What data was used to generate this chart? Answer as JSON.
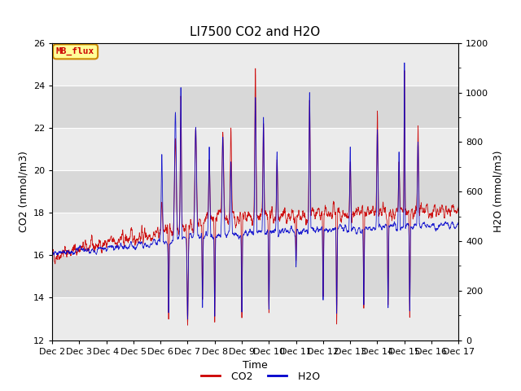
{
  "title": "LI7500 CO2 and H2O",
  "xlabel": "Time",
  "ylabel_left": "CO2 (mmol/m3)",
  "ylabel_right": "H2O (mmol/m3)",
  "ylim_left": [
    12,
    26
  ],
  "ylim_right": [
    0,
    1200
  ],
  "yticks_left": [
    12,
    14,
    16,
    18,
    20,
    22,
    24,
    26
  ],
  "yticks_right": [
    0,
    200,
    400,
    600,
    800,
    1000,
    1200
  ],
  "xtick_labels": [
    "Dec 2",
    "Dec 3",
    "Dec 4",
    "Dec 5",
    "Dec 6",
    "Dec 7",
    "Dec 8",
    "Dec 9",
    "Dec 10",
    "Dec 11",
    "Dec 12",
    "Dec 13",
    "Dec 14",
    "Dec 15",
    "Dec 16",
    "Dec 17"
  ],
  "co2_color": "#cc0000",
  "h2o_color": "#0000cc",
  "plot_bg_light": "#ebebeb",
  "plot_bg_dark": "#d8d8d8",
  "legend_box_facecolor": "#ffff99",
  "legend_box_edgecolor": "#cc8800",
  "annotation_text": "MB_flux",
  "annotation_color": "#cc0000",
  "n_days": 15,
  "seed": 42,
  "figsize": [
    6.4,
    4.8
  ],
  "dpi": 100
}
